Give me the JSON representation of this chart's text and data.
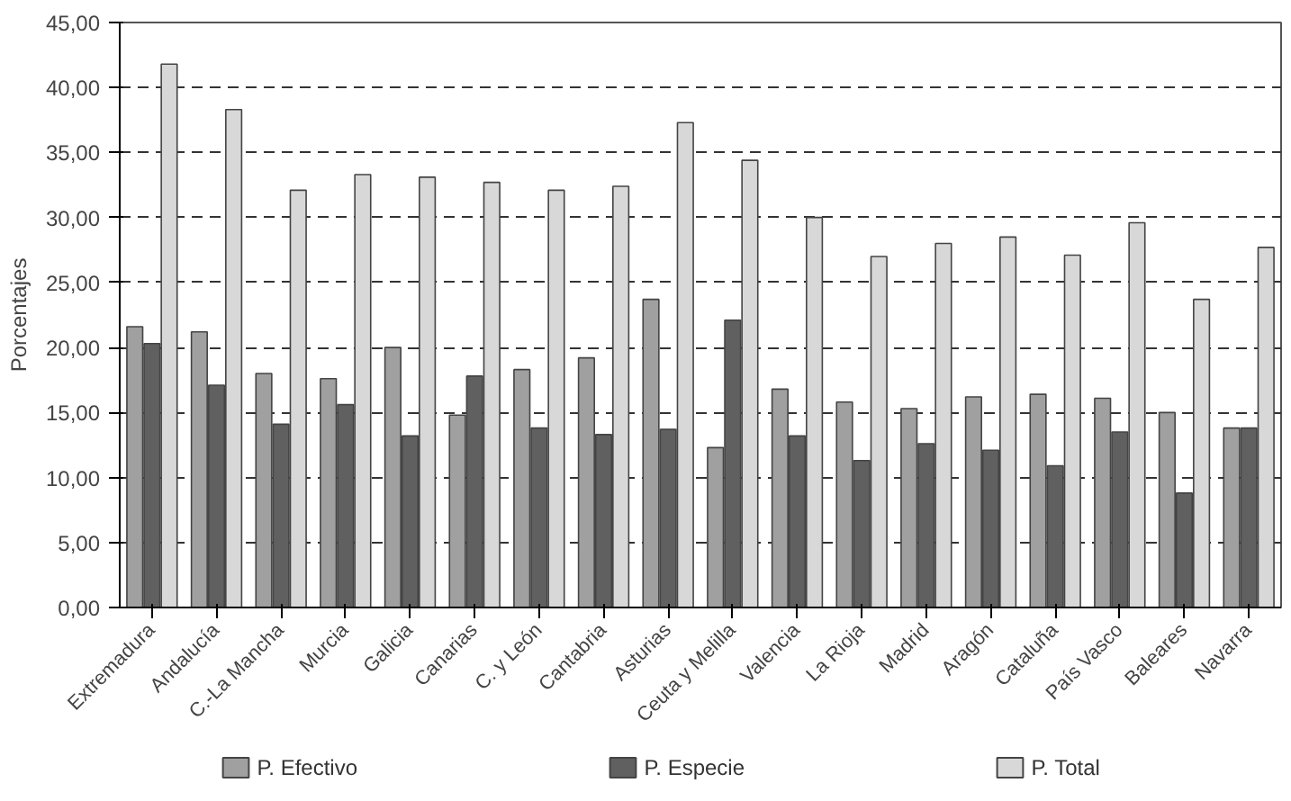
{
  "chart_data": {
    "type": "bar",
    "ylabel": "Porcentajes",
    "categories": [
      "Extremadura",
      "Andalucía",
      "C.-La Mancha",
      "Murcia",
      "Galicia",
      "Canarias",
      "C. y León",
      "Cantabria",
      "Asturias",
      "Ceuta y Melilla",
      "Valencia",
      "La Rioja",
      "Madrid",
      "Aragón",
      "Cataluña",
      "País Vasco",
      "Baleares",
      "Navarra"
    ],
    "series": [
      {
        "name": "P. Efectivo",
        "color": "#a0a0a0",
        "values": [
          21.6,
          21.2,
          18.0,
          17.6,
          20.0,
          14.8,
          18.3,
          19.2,
          23.7,
          12.3,
          16.8,
          15.8,
          15.3,
          16.2,
          16.4,
          16.1,
          15.0,
          13.8
        ]
      },
      {
        "name": "P. Especie",
        "color": "#606060",
        "values": [
          20.3,
          17.1,
          14.1,
          15.6,
          13.2,
          17.8,
          13.8,
          13.3,
          13.7,
          22.1,
          13.2,
          11.3,
          12.6,
          12.1,
          10.9,
          13.5,
          8.8,
          13.8
        ]
      },
      {
        "name": "P. Total",
        "color": "#d8d8d8",
        "values": [
          41.8,
          38.3,
          32.1,
          33.3,
          33.1,
          32.7,
          32.1,
          32.4,
          37.3,
          34.4,
          30.0,
          27.0,
          28.0,
          28.5,
          27.1,
          29.6,
          23.7,
          27.7
        ]
      }
    ],
    "ylim": [
      0,
      45
    ],
    "yticks": [
      {
        "value": 0,
        "label": "0,00"
      },
      {
        "value": 5,
        "label": "5,00"
      },
      {
        "value": 10,
        "label": "10,00"
      },
      {
        "value": 15,
        "label": "15,00"
      },
      {
        "value": 20,
        "label": "20,00"
      },
      {
        "value": 25,
        "label": "25,00"
      },
      {
        "value": 30,
        "label": "30,00"
      },
      {
        "value": 35,
        "label": "35,00"
      },
      {
        "value": 40,
        "label": "40,00"
      },
      {
        "value": 45,
        "label": "45,00"
      }
    ],
    "grid": "y",
    "legend": "bottom"
  }
}
